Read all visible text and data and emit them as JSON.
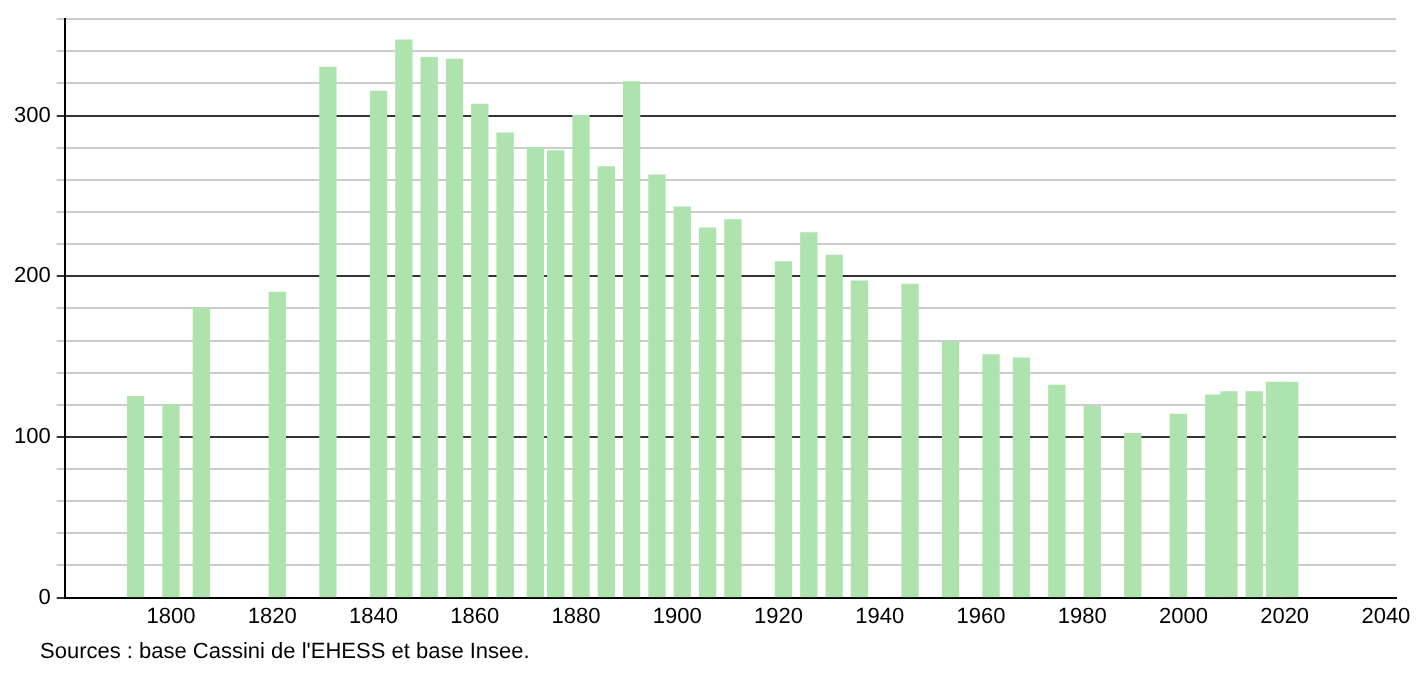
{
  "chart_data": {
    "type": "bar",
    "color": "#aee3ae",
    "x": [
      1793,
      1800,
      1806,
      1821,
      1831,
      1841,
      1846,
      1851,
      1856,
      1861,
      1866,
      1872,
      1876,
      1881,
      1886,
      1891,
      1896,
      1901,
      1906,
      1911,
      1921,
      1926,
      1931,
      1936,
      1946,
      1954,
      1962,
      1968,
      1975,
      1982,
      1990,
      1999,
      2006,
      2009,
      2014,
      2018,
      2021
    ],
    "values": [
      125,
      120,
      180,
      190,
      330,
      315,
      347,
      336,
      335,
      307,
      289,
      280,
      278,
      300,
      268,
      321,
      263,
      243,
      230,
      235,
      209,
      227,
      213,
      197,
      195,
      159,
      151,
      149,
      132,
      119,
      102,
      114,
      126,
      128,
      128,
      134,
      134
    ],
    "xlim": [
      1779,
      2042
    ],
    "xticks": [
      1800,
      1820,
      1840,
      1860,
      1880,
      1900,
      1920,
      1940,
      1960,
      1980,
      2000,
      2020,
      2040
    ],
    "ylim": [
      0,
      360
    ],
    "yticks": [
      0,
      {
        "value": 20,
        "label": null
      },
      {
        "value": 40,
        "label": null
      },
      {
        "value": 60,
        "label": null
      },
      {
        "value": 80,
        "label": null
      },
      100,
      {
        "value": 120,
        "label": null
      },
      {
        "value": 140,
        "label": null
      },
      {
        "value": 160,
        "label": null
      },
      {
        "value": 180,
        "label": null
      },
      200,
      {
        "value": 220,
        "label": null
      },
      {
        "value": 240,
        "label": null
      },
      {
        "value": 260,
        "label": null
      },
      {
        "value": 280,
        "label": null
      },
      300,
      {
        "value": 320,
        "label": null
      },
      {
        "value": 340,
        "label": null
      },
      {
        "value": 360,
        "label": null
      }
    ],
    "grid": "y",
    "annotations": [
      "Sources : base Cassini de l'EHESS et base Insee."
    ]
  }
}
